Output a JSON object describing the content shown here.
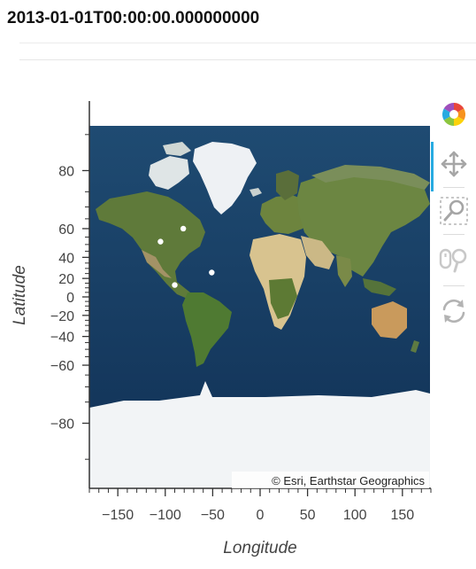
{
  "header": {
    "title": "2013-01-01T00:00:00.000000000"
  },
  "map": {
    "attribution": "© Esri, Earthstar Geographics",
    "basemap": "esri-imagery",
    "colors": {
      "ocean": "#1f4f7a",
      "land": "#5f7a3a",
      "ice": "#f4f6f8",
      "desert": "#d7c79a",
      "point": "#ffffff"
    },
    "x_axis": {
      "label": "Longitude",
      "range": [
        -180,
        180
      ],
      "ticks": [
        -150,
        -100,
        -50,
        0,
        50,
        100,
        150
      ],
      "tick_labels": [
        "−150",
        "−100",
        "−50",
        "0",
        "50",
        "100",
        "150"
      ]
    },
    "y_axis": {
      "label": "Latitude",
      "range": [
        -85,
        85
      ],
      "scale": "web-mercator",
      "ticks": [
        80,
        60,
        40,
        20,
        0,
        -20,
        -40,
        -60,
        -80
      ],
      "tick_labels": [
        "80",
        "60",
        "40",
        "20",
        "0",
        "−20",
        "−40",
        "−60",
        "−80"
      ]
    },
    "points": [
      {
        "lon": -105,
        "lat": 52
      },
      {
        "lon": -81,
        "lat": 60
      },
      {
        "lon": -51,
        "lat": 26
      },
      {
        "lon": -90,
        "lat": 13
      }
    ]
  },
  "toolbar": {
    "logo_icon": "bokeh-logo-icon",
    "tools": [
      {
        "icon": "pan-icon",
        "active": true
      },
      {
        "icon": "box-zoom-icon",
        "active": false
      },
      {
        "icon": "wheel-zoom-icon",
        "active": false
      },
      {
        "icon": "reset-icon",
        "active": false
      }
    ]
  }
}
